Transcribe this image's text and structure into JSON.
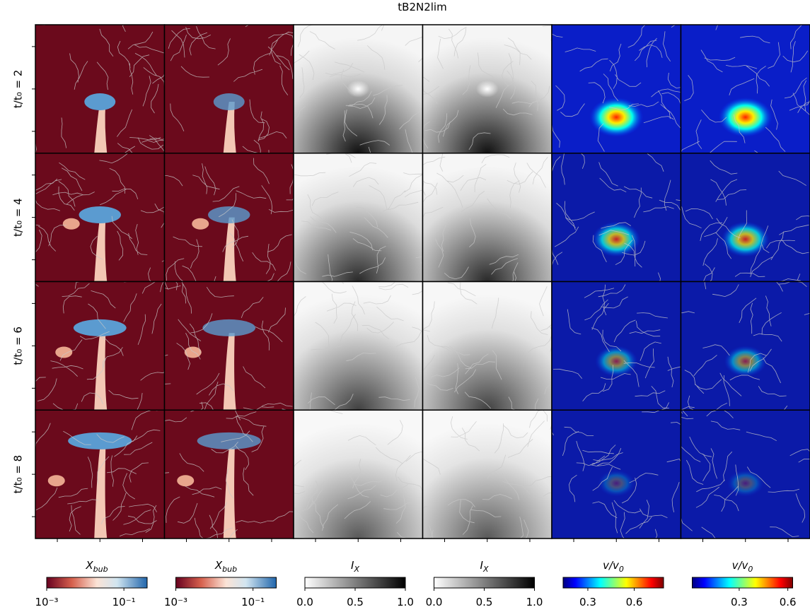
{
  "figure": {
    "title": "tB2N2lim",
    "rows": [
      "t/t₀ = 2",
      "t/t₀ = 4",
      "t/t₀ = 6",
      "t/t₀ = 8"
    ],
    "colorbars": [
      {
        "label": {
          "main": "X",
          "sub": "bub"
        },
        "colormap": "RdBu_r",
        "log": true,
        "lim": [
          0.001,
          0.4
        ],
        "ticks": [
          {
            "value": 0.001,
            "label": "10⁻³"
          },
          {
            "value": 0.1,
            "label": "10⁻¹"
          }
        ]
      },
      {
        "label": {
          "main": "X",
          "sub": "bub"
        },
        "colormap": "RdBu_r",
        "log": true,
        "lim": [
          0.001,
          0.4
        ],
        "ticks": [
          {
            "value": 0.001,
            "label": "10⁻³"
          },
          {
            "value": 0.1,
            "label": "10⁻¹"
          }
        ]
      },
      {
        "label": {
          "main": "I",
          "sub": "X"
        },
        "colormap": "Greys",
        "log": false,
        "lim": [
          0,
          1
        ],
        "ticks": [
          {
            "value": 0,
            "label": "0.0"
          },
          0.5,
          {
            "value": 1,
            "label": "1.0"
          }
        ]
      },
      {
        "label": {
          "main": "I",
          "sub": "X"
        },
        "colormap": "Greys",
        "log": false,
        "lim": [
          0,
          1
        ],
        "ticks": [
          {
            "value": 0,
            "label": "0.0"
          },
          0.5,
          {
            "value": 1,
            "label": "1.0"
          }
        ]
      },
      {
        "label": {
          "main": "v/v",
          "sub": "0"
        },
        "colormap": "jet",
        "log": false,
        "lim": [
          0.14,
          0.79
        ],
        "ticks": [
          0.3,
          0.6
        ]
      },
      {
        "label": {
          "main": "v/v",
          "sub": "0"
        },
        "colormap": "jet",
        "log": false,
        "lim": [
          0.01,
          0.63
        ],
        "ticks": [
          0.3,
          0.6
        ]
      }
    ]
  }
}
